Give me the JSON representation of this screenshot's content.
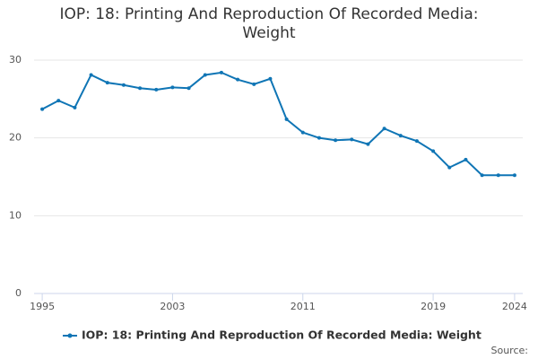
{
  "chart_data": {
    "type": "line",
    "title": "IOP: 18: Printing And Reproduction Of Recorded Media: Weight",
    "x": [
      1995,
      1996,
      1997,
      1998,
      1999,
      2000,
      2001,
      2002,
      2003,
      2004,
      2005,
      2006,
      2007,
      2008,
      2009,
      2010,
      2011,
      2012,
      2013,
      2014,
      2015,
      2016,
      2017,
      2018,
      2019,
      2020,
      2021,
      2022,
      2023,
      2024
    ],
    "series": [
      {
        "name": "IOP: 18: Printing And Reproduction Of Recorded Media: Weight",
        "color": "#0f75b5",
        "values": [
          23.7,
          24.8,
          23.9,
          28.1,
          27.1,
          26.8,
          26.4,
          26.2,
          26.5,
          26.4,
          28.1,
          28.4,
          27.5,
          26.9,
          27.6,
          22.4,
          20.7,
          20.0,
          19.7,
          19.8,
          19.2,
          21.2,
          20.3,
          19.6,
          18.3,
          16.2,
          17.2,
          15.2,
          15.2,
          15.2
        ]
      }
    ],
    "xlim": [
      1994.5,
      2024.5
    ],
    "xticks": [
      1995,
      2003,
      2011,
      2019,
      2024
    ],
    "ylim": [
      0,
      30
    ],
    "yticks": [
      0,
      10,
      20,
      30
    ],
    "grid": true,
    "legend": "bottom",
    "source_label": "Source:"
  }
}
